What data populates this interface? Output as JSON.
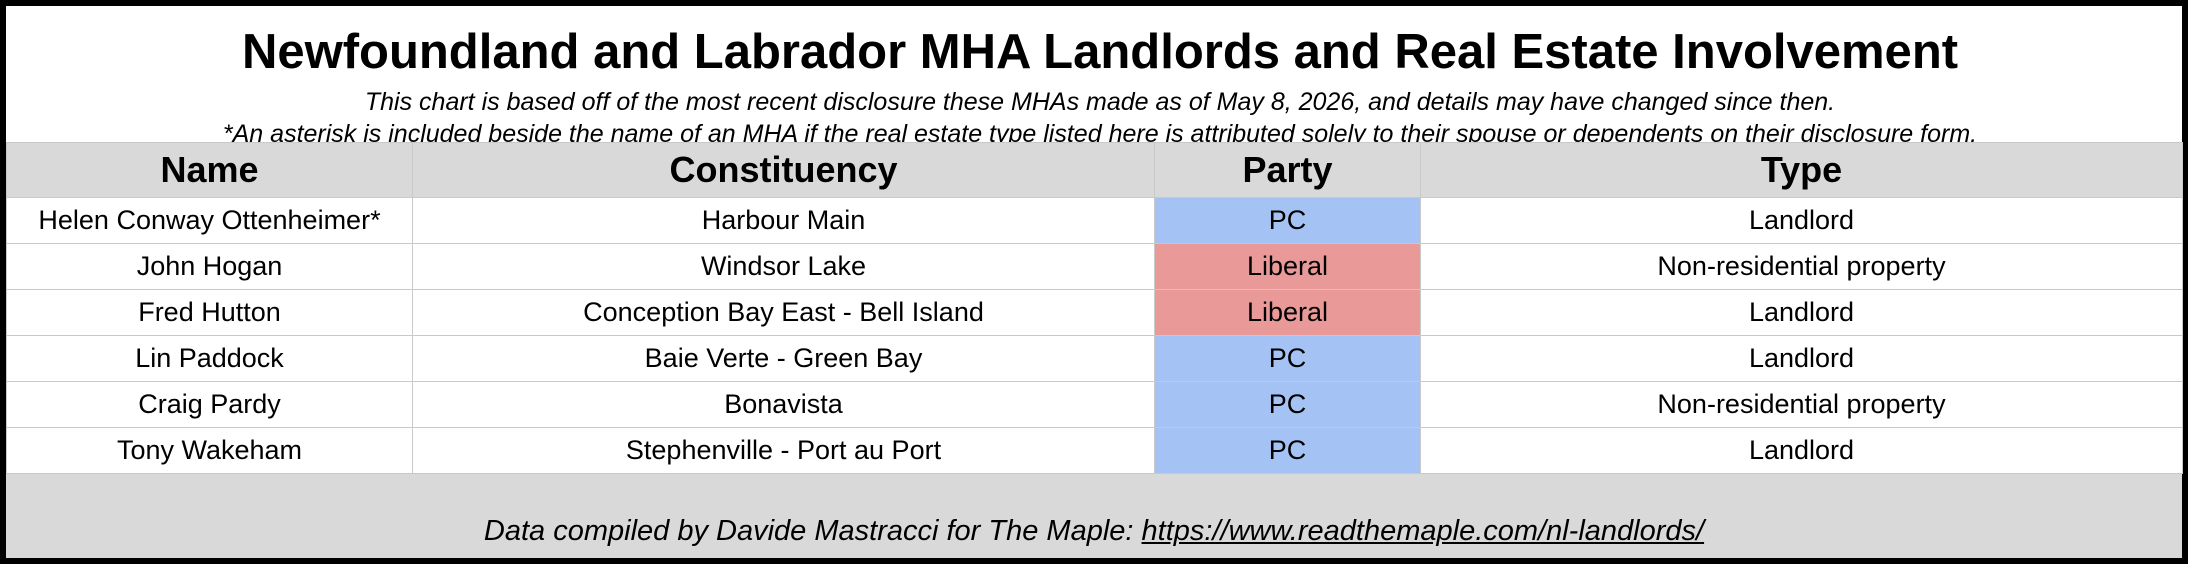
{
  "chart_data": {
    "type": "table",
    "title": "Newfoundland and Labrador MHA Landlords and Real Estate Involvement",
    "subtitle_lines": [
      "This chart is based off of the most recent disclosure these MHAs made as of May 8, 2026, and details may have changed since then.",
      "*An asterisk is included beside the name of an MHA if the real estate type listed here is attributed solely to their spouse or dependents on their disclosure form."
    ],
    "columns": [
      "Name",
      "Constituency",
      "Party",
      "Type"
    ],
    "rows": [
      {
        "name": "Helen Conway Ottenheimer*",
        "constituency": "Harbour Main",
        "party": "PC",
        "type": "Landlord"
      },
      {
        "name": "John Hogan",
        "constituency": "Windsor Lake",
        "party": "Liberal",
        "type": "Non-residential property"
      },
      {
        "name": "Fred Hutton",
        "constituency": "Conception Bay East - Bell Island",
        "party": "Liberal",
        "type": "Landlord"
      },
      {
        "name": "Lin Paddock",
        "constituency": "Baie Verte - Green Bay",
        "party": "PC",
        "type": "Landlord"
      },
      {
        "name": "Craig Pardy",
        "constituency": "Bonavista",
        "party": "PC",
        "type": "Non-residential property"
      },
      {
        "name": "Tony Wakeham",
        "constituency": "Stephenville - Port au Port",
        "party": "PC",
        "type": "Landlord"
      }
    ],
    "party_colors": {
      "PC": "#a4c2f4",
      "Liberal": "#ea9999"
    },
    "footer": {
      "text": "Data compiled by Davide Mastracci for The Maple: ",
      "link": "https://www.readthemaple.com/nl-landlords/"
    }
  }
}
